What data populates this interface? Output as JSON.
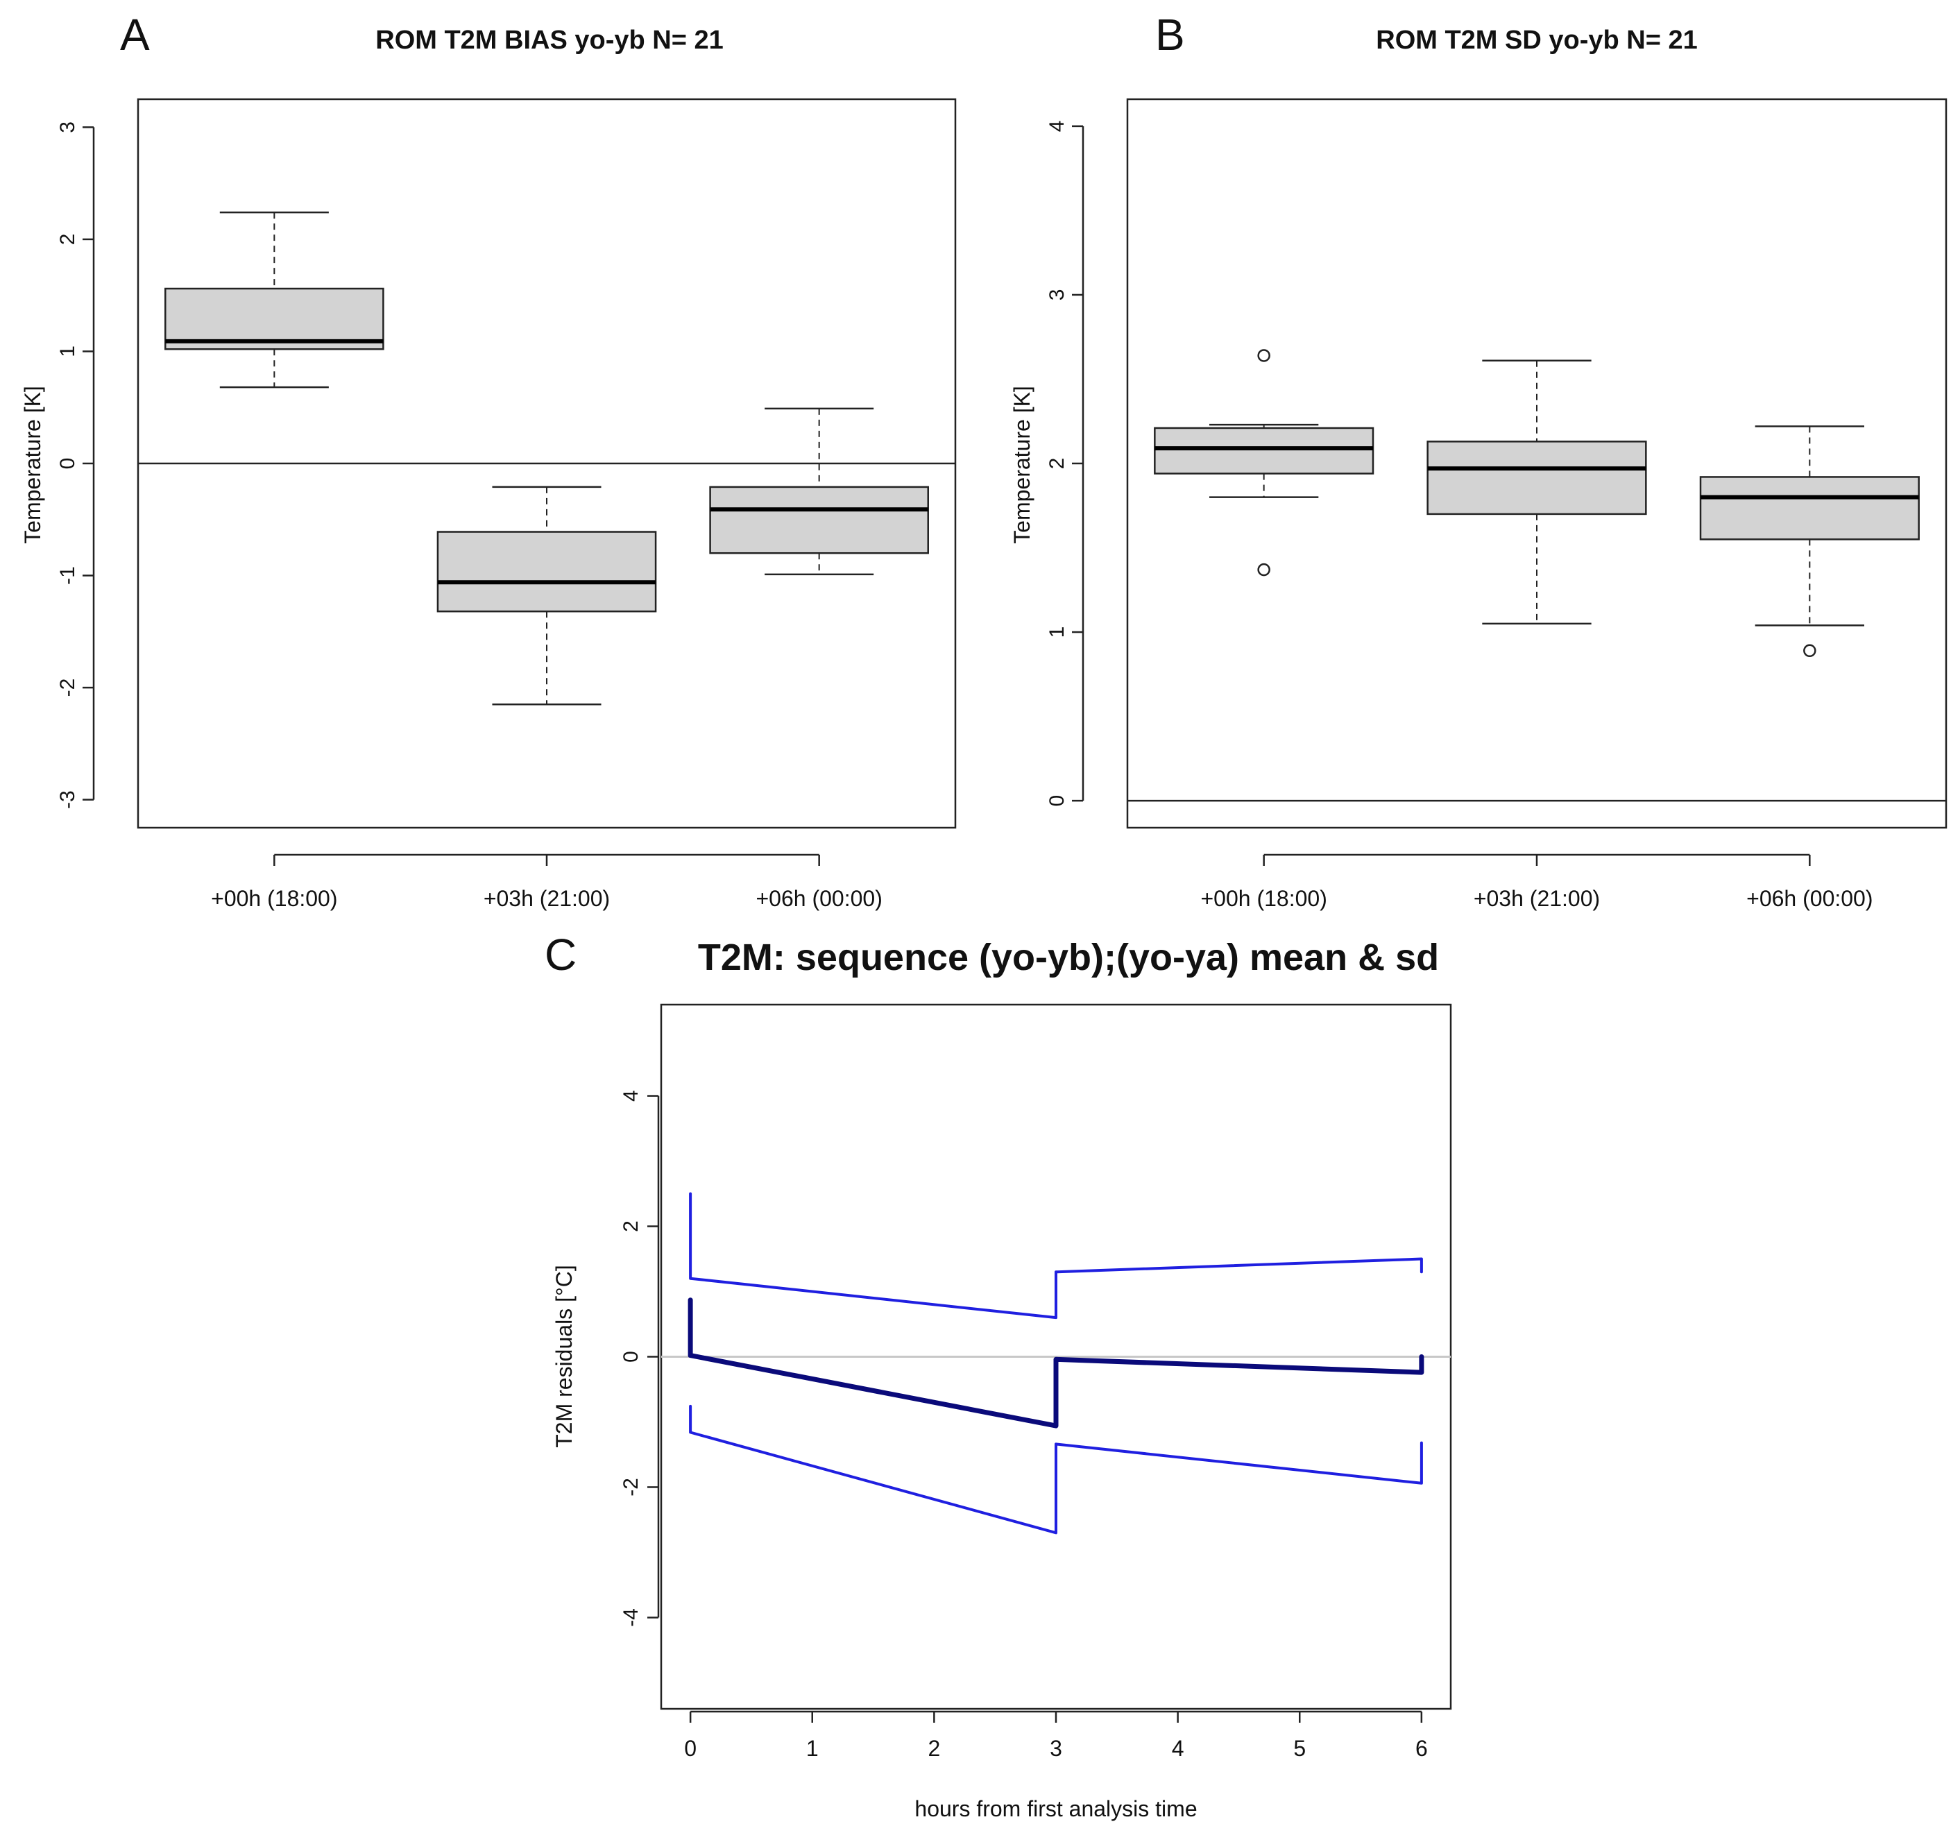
{
  "figure": {
    "panel_letters": [
      "A",
      "B",
      "C"
    ]
  },
  "chart_data": [
    {
      "type": "box",
      "panel": "A",
      "title": "ROM T2M BIAS yo-yb N= 21",
      "xlabel": "",
      "ylabel": "Temperature [K]",
      "ylim": [
        -3.25,
        3.25
      ],
      "yticks": [
        -3,
        -2,
        -1,
        0,
        1,
        2,
        3
      ],
      "ytick_labels": [
        "-3",
        "-2",
        "-1",
        "0",
        "1",
        "2",
        "3"
      ],
      "reference_line": 0,
      "categories": [
        "+00h (18:00)",
        "+03h (21:00)",
        "+06h (00:00)"
      ],
      "boxes": [
        {
          "whisker_low": 0.68,
          "q1": 1.02,
          "median": 1.09,
          "q3": 1.56,
          "whisker_high": 2.24,
          "outliers": []
        },
        {
          "whisker_low": -2.15,
          "q1": -1.32,
          "median": -1.06,
          "q3": -0.61,
          "whisker_high": -0.21,
          "outliers": []
        },
        {
          "whisker_low": -0.99,
          "q1": -0.8,
          "median": -0.41,
          "q3": -0.21,
          "whisker_high": 0.49,
          "outliers": []
        }
      ]
    },
    {
      "type": "box",
      "panel": "B",
      "title": "ROM T2M SD yo-yb N= 21",
      "xlabel": "",
      "ylabel": "Temperature [K]",
      "ylim": [
        -0.16,
        4.16
      ],
      "yticks": [
        0,
        1,
        2,
        3,
        4
      ],
      "ytick_labels": [
        "0",
        "1",
        "2",
        "3",
        "4"
      ],
      "reference_line": 0,
      "categories": [
        "+00h (18:00)",
        "+03h (21:00)",
        "+06h (00:00)"
      ],
      "boxes": [
        {
          "whisker_low": 1.8,
          "q1": 1.94,
          "median": 2.09,
          "q3": 2.21,
          "whisker_high": 2.23,
          "outliers": [
            2.64,
            1.37
          ]
        },
        {
          "whisker_low": 1.05,
          "q1": 1.7,
          "median": 1.97,
          "q3": 2.13,
          "whisker_high": 2.61,
          "outliers": []
        },
        {
          "whisker_low": 1.04,
          "q1": 1.55,
          "median": 1.8,
          "q3": 1.92,
          "whisker_high": 2.22,
          "outliers": [
            0.89
          ]
        }
      ]
    },
    {
      "type": "line",
      "panel": "C",
      "title": "T2M: sequence (yo-yb);(yo-ya) mean & sd",
      "xlabel": "hours from first analysis time",
      "ylabel": "T2M residuals [°C]",
      "xlim": [
        -0.24,
        6.24
      ],
      "ylim": [
        -5.4,
        5.4
      ],
      "xticks": [
        0,
        1,
        2,
        3,
        4,
        5,
        6
      ],
      "xtick_labels": [
        "0",
        "1",
        "2",
        "3",
        "4",
        "5",
        "6"
      ],
      "yticks": [
        -4,
        -2,
        0,
        2,
        4
      ],
      "ytick_labels": [
        "-4",
        "-2",
        "0",
        "2",
        "4"
      ],
      "reference_line": 0,
      "series": [
        {
          "name": "mean",
          "color": "#0a0a7a",
          "x": [
            0,
            0,
            3,
            3,
            6,
            6
          ],
          "y": [
            0.87,
            0.02,
            -1.06,
            -0.04,
            -0.24,
            0.0
          ]
        },
        {
          "name": "mean + sd",
          "color": "#1f1fe0",
          "x": [
            0,
            0,
            3,
            3,
            6,
            6
          ],
          "y": [
            2.5,
            1.2,
            0.6,
            1.3,
            1.5,
            1.3
          ]
        },
        {
          "name": "mean - sd",
          "color": "#1f1fe0",
          "x": [
            0,
            0,
            3,
            3,
            6,
            6
          ],
          "y": [
            -0.76,
            -1.16,
            -2.7,
            -1.34,
            -1.94,
            -1.32
          ]
        }
      ]
    }
  ]
}
